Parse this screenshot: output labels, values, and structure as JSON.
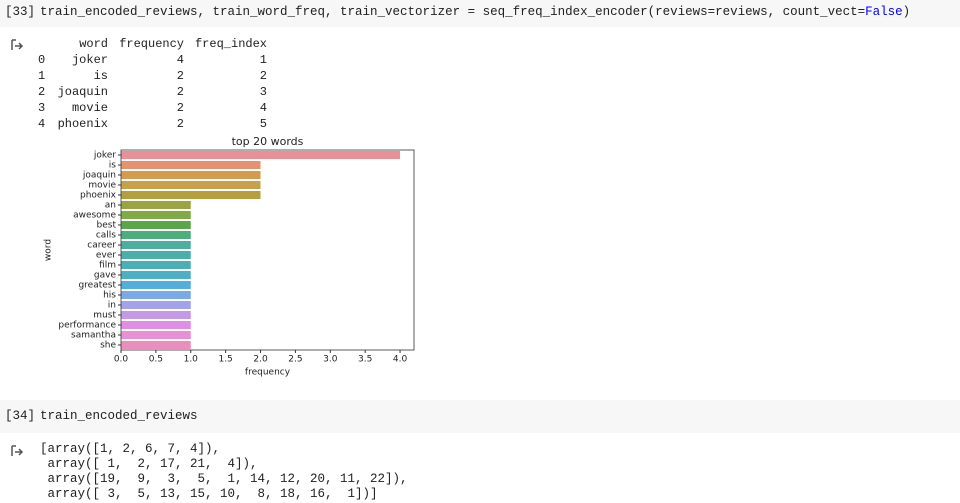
{
  "cells": [
    {
      "prompt": "[33]",
      "code": [
        "train_encoded_reviews, train_word_freq, train_vectorizer = seq_freq_index_encoder(reviews=reviews, count_vect=",
        "False",
        ")"
      ],
      "output": {
        "table": {
          "columns": [
            "word",
            "frequency",
            "freq_index"
          ],
          "rows": [
            [
              0,
              "joker",
              4,
              1
            ],
            [
              1,
              "is",
              2,
              2
            ],
            [
              2,
              "joaquin",
              2,
              3
            ],
            [
              3,
              "movie",
              2,
              4
            ],
            [
              4,
              "phoenix",
              2,
              5
            ]
          ]
        }
      }
    },
    {
      "prompt": "[34]",
      "code": [
        "train_encoded_reviews"
      ],
      "output": {
        "lines": [
          "[array([1, 2, 6, 7, 4]),",
          " array([ 1,  2, 17, 21,  4]),",
          " array([19,  9,  3,  5,  1, 14, 12, 20, 11, 22]),",
          " array([ 3,  5, 13, 15, 10,  8, 18, 16,  1])]"
        ]
      }
    }
  ],
  "chart_data": {
    "type": "barh",
    "title": "top 20 words",
    "xlabel": "frequency",
    "ylabel": "word",
    "categories": [
      "joker",
      "is",
      "joaquin",
      "movie",
      "phoenix",
      "an",
      "awesome",
      "best",
      "calls",
      "career",
      "ever",
      "film",
      "gave",
      "greatest",
      "his",
      "in",
      "must",
      "performance",
      "samantha",
      "she"
    ],
    "values": [
      4,
      2,
      2,
      2,
      2,
      1,
      1,
      1,
      1,
      1,
      1,
      1,
      1,
      1,
      1,
      1,
      1,
      1,
      1,
      1
    ],
    "colors": [
      "#e99097",
      "#e4936e",
      "#d49a4e",
      "#c8a04a",
      "#b59e3d",
      "#9aa440",
      "#7faa45",
      "#5ba64b",
      "#4bae7c",
      "#4cae9d",
      "#4aaeaa",
      "#4ab0b5",
      "#4cb0c4",
      "#54aedb",
      "#7ba8e6",
      "#a3a2ea",
      "#c49ae8",
      "#df8ee6",
      "#e98fd3",
      "#ea8fbd"
    ],
    "xlim": [
      0,
      4.2
    ],
    "xticks": [
      {
        "value": 0,
        "label": "0.0"
      },
      {
        "value": 0.5,
        "label": "0.5"
      },
      {
        "value": 1,
        "label": "1.0"
      },
      {
        "value": 1.5,
        "label": "1.5"
      },
      {
        "value": 2,
        "label": "2.0"
      },
      {
        "value": 2.5,
        "label": "2.5"
      },
      {
        "value": 3,
        "label": "3.0"
      },
      {
        "value": 3.5,
        "label": "3.5"
      },
      {
        "value": 4,
        "label": "4.0"
      }
    ]
  }
}
